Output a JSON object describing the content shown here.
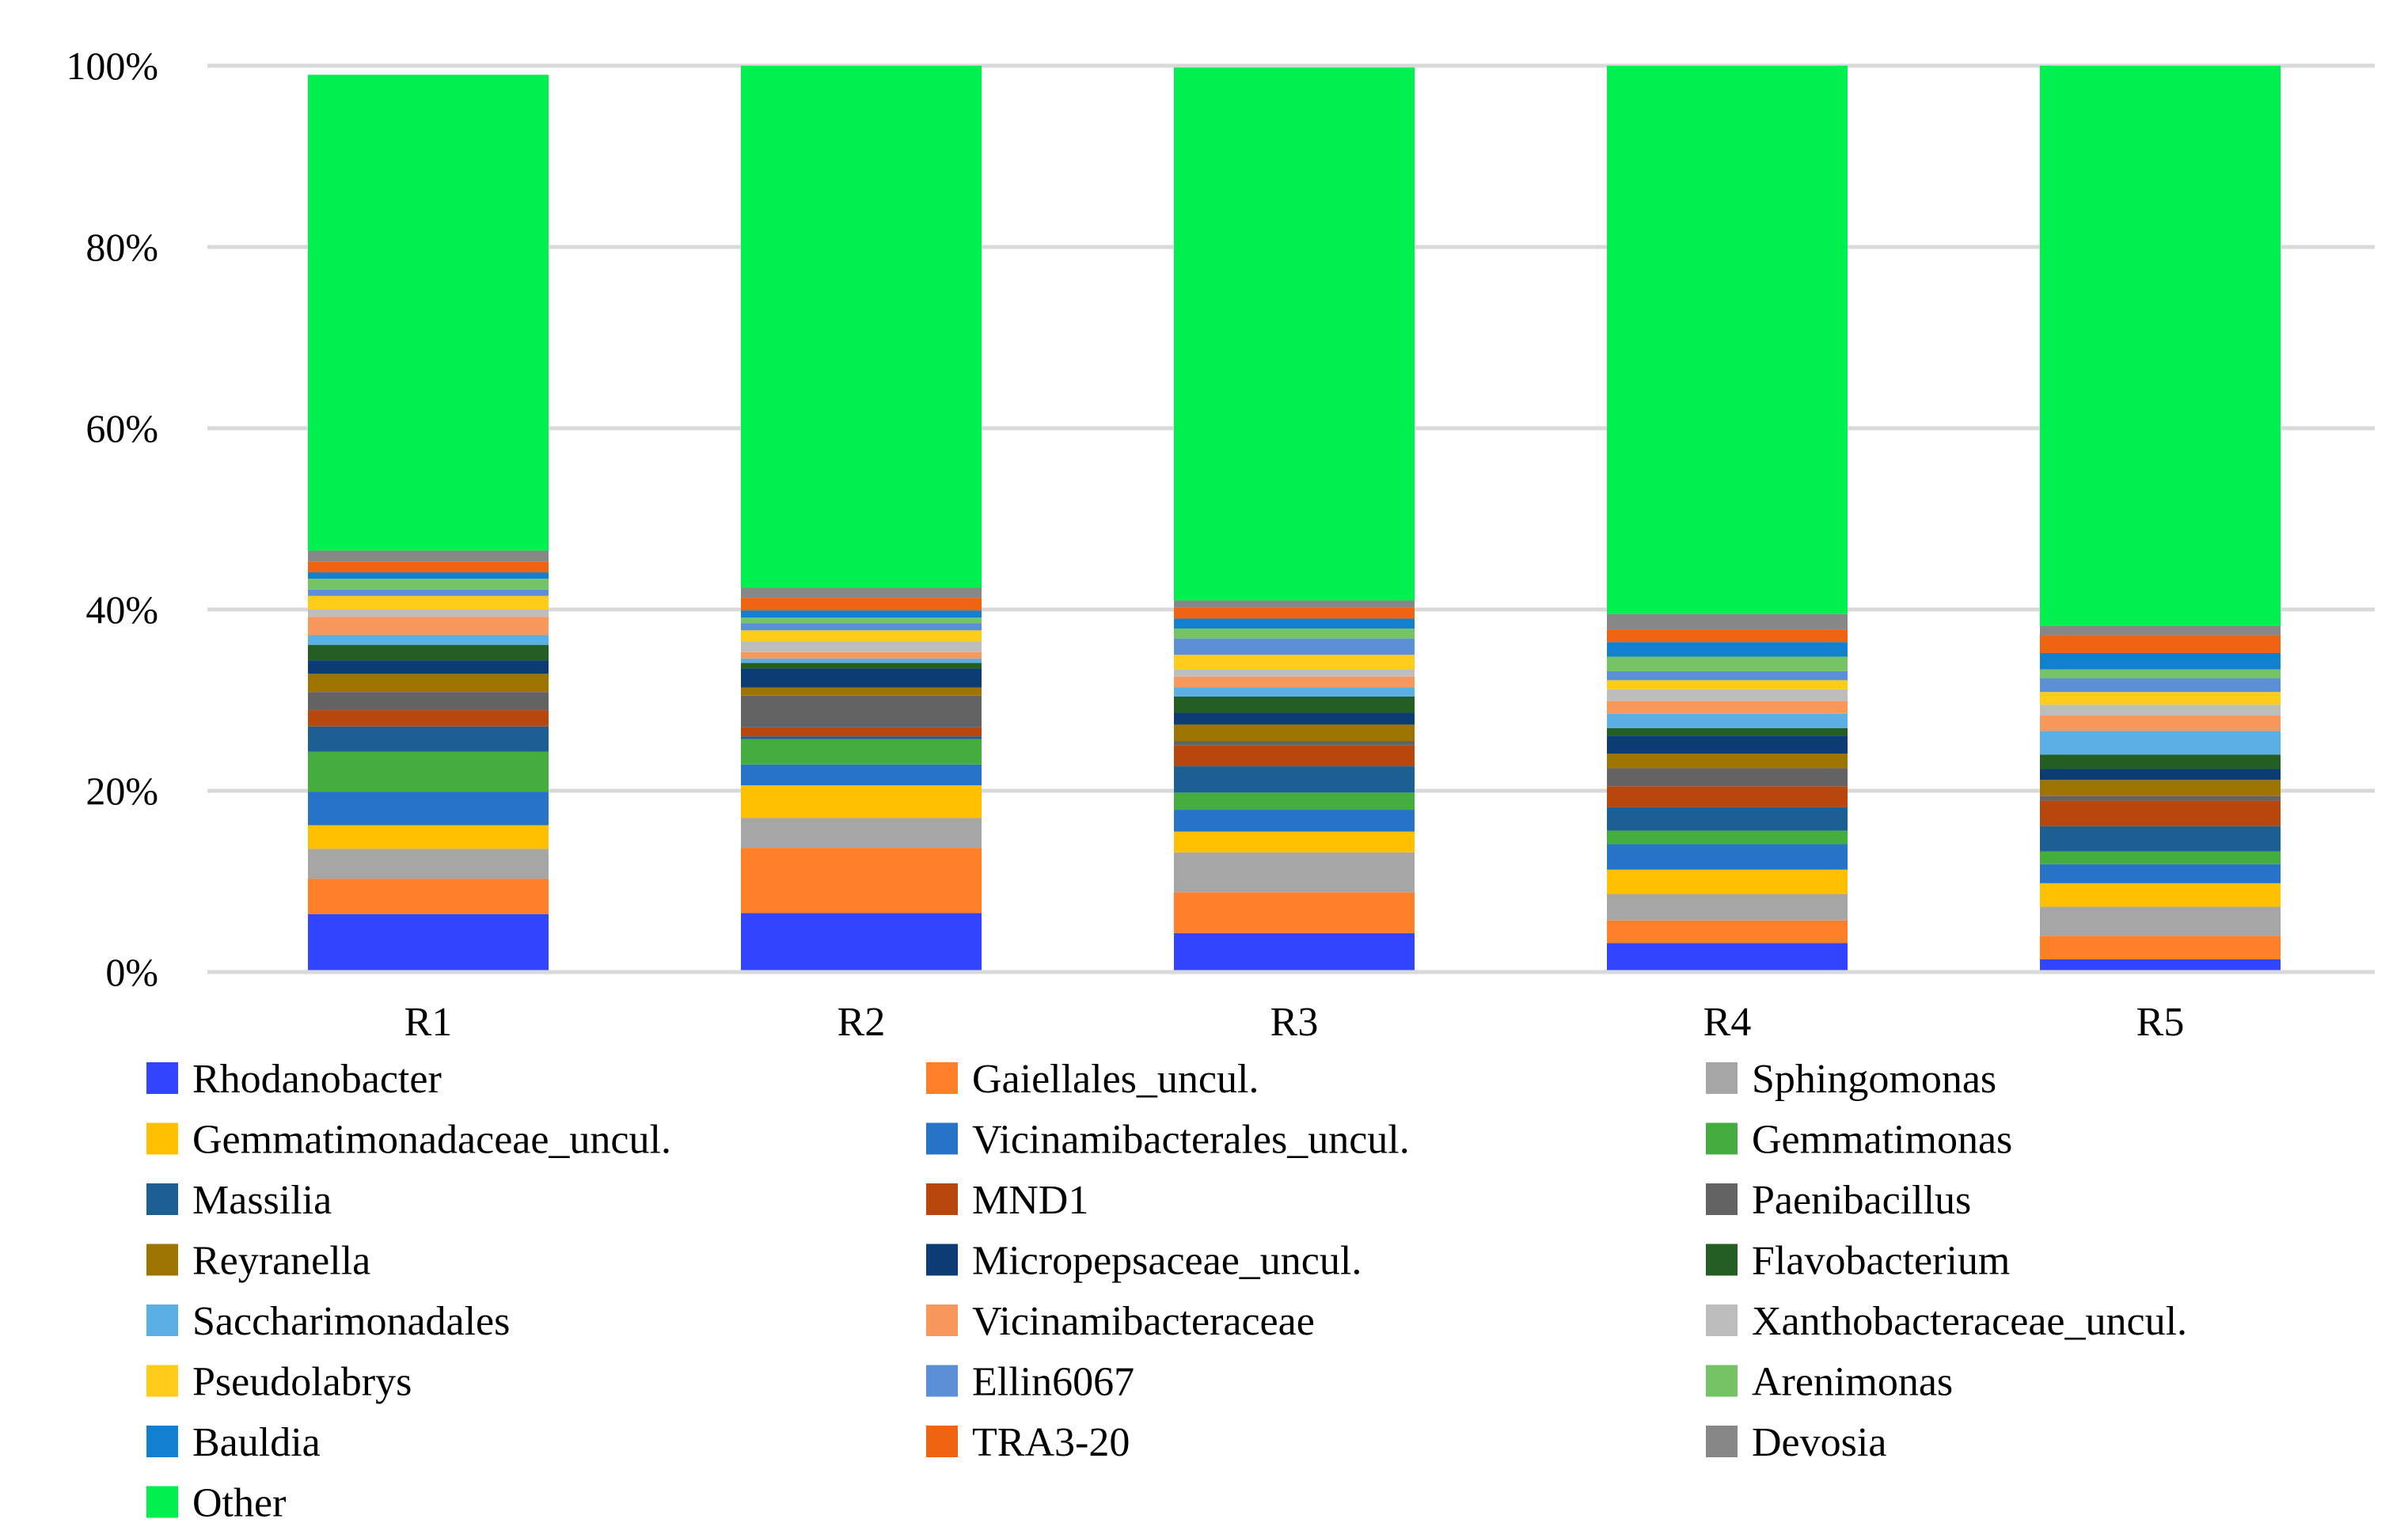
{
  "chart_data": {
    "type": "bar",
    "stacked": true,
    "percent": true,
    "categories": [
      "R1",
      "R2",
      "R3",
      "R4",
      "R5"
    ],
    "ylim": [
      0,
      100
    ],
    "yticks": [
      "0%",
      "20%",
      "40%",
      "60%",
      "80%",
      "100%"
    ],
    "grid": true,
    "legend_position": "bottom",
    "series": [
      {
        "name": "Rhodanobacter",
        "color": "#3344ff",
        "values": [
          6.4,
          6.5,
          4.3,
          3.2,
          1.4
        ]
      },
      {
        "name": "Gaiellales_uncul.",
        "color": "#ff8028",
        "values": [
          3.9,
          7.2,
          4.5,
          2.5,
          2.6
        ]
      },
      {
        "name": "Sphingomonas",
        "color": "#a6a6a6",
        "values": [
          3.3,
          3.3,
          4.4,
          2.9,
          3.2
        ]
      },
      {
        "name": "Gemmatimonadaceae_uncul.",
        "color": "#ffc000",
        "values": [
          2.6,
          3.6,
          2.3,
          2.7,
          2.6
        ]
      },
      {
        "name": "Vicinamibacterales_uncul.",
        "color": "#2673c7",
        "values": [
          3.7,
          2.3,
          2.4,
          2.8,
          2.1
        ]
      },
      {
        "name": "Gemmatimonas",
        "color": "#43ad3e",
        "values": [
          4.4,
          2.8,
          1.9,
          1.5,
          1.4
        ]
      },
      {
        "name": "Massilia",
        "color": "#1c5f93",
        "values": [
          2.8,
          0.3,
          2.9,
          2.6,
          2.8
        ]
      },
      {
        "name": "MND1",
        "color": "#b8470d",
        "values": [
          1.8,
          1.0,
          2.3,
          2.3,
          2.8
        ]
      },
      {
        "name": "Paenibacillus",
        "color": "#636363",
        "values": [
          2.0,
          3.5,
          0.5,
          2.0,
          0.5
        ]
      },
      {
        "name": "Reyranella",
        "color": "#9e7400",
        "values": [
          2.0,
          0.9,
          1.8,
          1.6,
          1.8
        ]
      },
      {
        "name": "Micropepsaceae_uncul.",
        "color": "#0b3d74",
        "values": [
          1.5,
          2.1,
          1.3,
          2.0,
          1.2
        ]
      },
      {
        "name": "Flavobacterium",
        "color": "#255e23",
        "values": [
          1.7,
          0.6,
          1.8,
          0.8,
          1.6
        ]
      },
      {
        "name": "Saccharimonadales",
        "color": "#5aafe5",
        "values": [
          1.1,
          0.5,
          1.0,
          1.6,
          2.6
        ]
      },
      {
        "name": "Vicinamibacteraceae",
        "color": "#f9985c",
        "values": [
          2.0,
          0.7,
          1.2,
          1.4,
          1.7
        ]
      },
      {
        "name": "Xanthobacteraceae_uncul.",
        "color": "#bdbdbd",
        "values": [
          0.8,
          1.2,
          0.8,
          1.3,
          1.2
        ]
      },
      {
        "name": "Pseudolabrys",
        "color": "#ffcc1a",
        "values": [
          1.5,
          1.2,
          1.6,
          1.0,
          1.4
        ]
      },
      {
        "name": "Ellin6067",
        "color": "#5b8fd6",
        "values": [
          0.7,
          0.8,
          1.8,
          1.0,
          1.5
        ]
      },
      {
        "name": "Arenimonas",
        "color": "#74c465",
        "values": [
          1.2,
          0.6,
          1.1,
          1.6,
          1.0
        ]
      },
      {
        "name": "Bauldia",
        "color": "#1180ce",
        "values": [
          0.7,
          0.8,
          1.1,
          1.6,
          1.8
        ]
      },
      {
        "name": "TRA3-20",
        "color": "#ef6410",
        "values": [
          1.2,
          1.4,
          1.2,
          1.4,
          2.0
        ]
      },
      {
        "name": "Devosia",
        "color": "#878787",
        "values": [
          1.2,
          1.1,
          0.8,
          1.7,
          1.0
        ]
      },
      {
        "name": "Other",
        "color": "#00f050",
        "values": [
          52.5,
          57.6,
          58.8,
          60.5,
          61.8
        ]
      }
    ]
  }
}
